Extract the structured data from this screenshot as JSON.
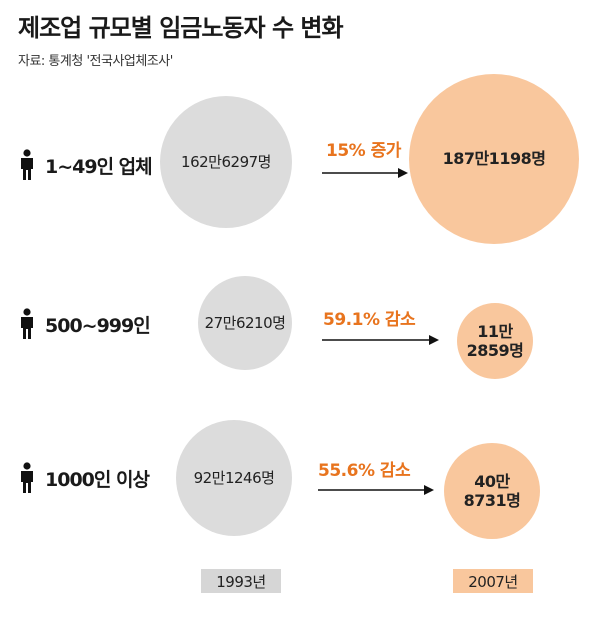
{
  "title": "제조업 규모별 임금노동자 수 변화",
  "source": "자료: 통계청 '전국사업체조사'",
  "colors": {
    "year_1993": "#dcdcdc",
    "year_2007": "#f9c79d",
    "change_text": "#e8741e"
  },
  "icon": "person-icon",
  "chart_data": {
    "type": "bubble-comparison",
    "title": "제조업 규모별 임금노동자 수 변화",
    "years": [
      "1993년",
      "2007년"
    ],
    "rows": [
      {
        "category": "1~49인 업체",
        "value_1993": 1626297,
        "value_2007": 1871198,
        "label_1993": "162만6297명",
        "label_2007": "187만1198명",
        "change": "15% 증가"
      },
      {
        "category": "500~999인",
        "value_1993": 276210,
        "value_2007": 112859,
        "label_1993": "27만6210명",
        "label_2007": "11만\n2859명",
        "change": "59.1% 감소"
      },
      {
        "category": "1000인 이상",
        "value_1993": 921246,
        "value_2007": 408731,
        "label_1993": "92만1246명",
        "label_2007": "40만\n8731명",
        "change": "55.6% 감소"
      }
    ]
  }
}
